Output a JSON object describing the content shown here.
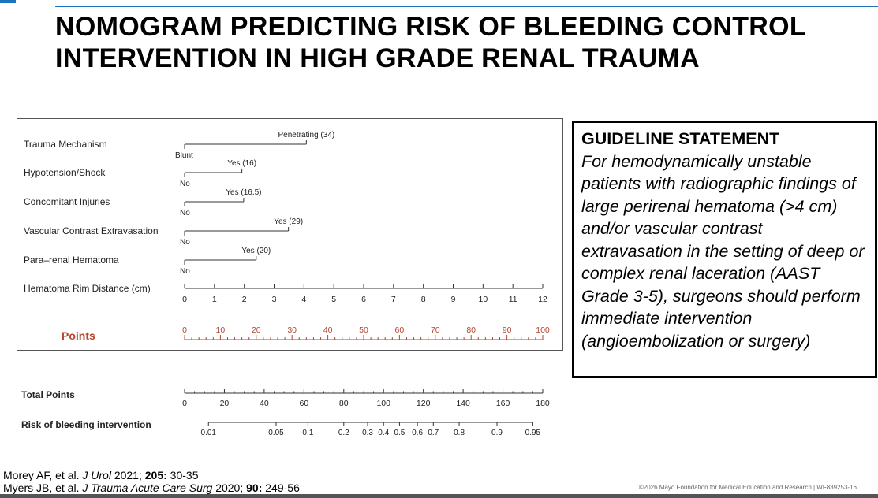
{
  "colors": {
    "accent": "#1e73be",
    "points": "#b5452f",
    "axis": "#333333"
  },
  "slide": {
    "title": "NOMOGRAM PREDICTING RISK OF BLEEDING CONTROL INTERVENTION IN HIGH GRADE RENAL TRAUMA"
  },
  "guideline": {
    "heading": "GUIDELINE STATEMENT",
    "body": "For hemodynamically unstable patients with radiographic findings of large perirenal hematoma (>4 cm) and/or vascular contrast extravasation in the setting of deep or complex renal laceration (AAST Grade 3-5), surgeons should perform immediate intervention (angioembolization or surgery)"
  },
  "references": {
    "ref1": {
      "authors": "Morey AF, et al. ",
      "journal": "J Urol",
      "year": " 2021; ",
      "volume": "205:",
      "pages": " 30-35"
    },
    "ref2": {
      "authors": "Myers JB, et al. ",
      "journal": "J Trauma Acute Care Surg",
      "year": "  2020; ",
      "volume": "90:",
      "pages": " 249-56"
    }
  },
  "footer": {
    "copyright": "©2026 Mayo Foundation for Medical Education and Research  |  WF839253-16"
  },
  "chart_data": {
    "type": "nomogram",
    "variables": [
      {
        "name": "Trauma Mechanism",
        "low_label": "Blunt",
        "high_label": "Penetrating (34)",
        "points": 34
      },
      {
        "name": "Hypotension/Shock",
        "low_label": "No",
        "high_label": "Yes (16)",
        "points": 16
      },
      {
        "name": "Concomitant Injuries",
        "low_label": "No",
        "high_label": "Yes (16.5)",
        "points": 16.5
      },
      {
        "name": "Vascular Contrast Extravasation",
        "low_label": "No",
        "high_label": "Yes (29)",
        "points": 29
      },
      {
        "name": "Para–renal Hematoma",
        "low_label": "No",
        "high_label": "Yes (20)",
        "points": 20
      }
    ],
    "rim": {
      "name": "Hematoma Rim Distance (cm)",
      "ticks": [
        0,
        1,
        2,
        3,
        4,
        5,
        6,
        7,
        8,
        9,
        10,
        11,
        12
      ]
    },
    "points_axis": {
      "name": "Points",
      "range": [
        0,
        100
      ],
      "labels": [
        0,
        10,
        20,
        30,
        40,
        50,
        60,
        70,
        80,
        90,
        100
      ]
    },
    "total_points": {
      "name": "Total Points",
      "range": [
        0,
        180
      ],
      "labels": [
        0,
        20,
        40,
        60,
        80,
        100,
        120,
        140,
        160,
        180
      ]
    },
    "risk": {
      "name": "Risk of bleeding intervention",
      "labels": [
        "0.01",
        "0.05",
        "0.1",
        "0.2",
        "0.3",
        "0.4",
        "0.5",
        "0.6",
        "0.7",
        "0.8",
        "0.9",
        "0.95"
      ],
      "total_points_at": [
        12,
        46,
        62,
        80,
        92,
        100,
        108,
        117,
        125,
        138,
        157,
        175
      ]
    }
  }
}
